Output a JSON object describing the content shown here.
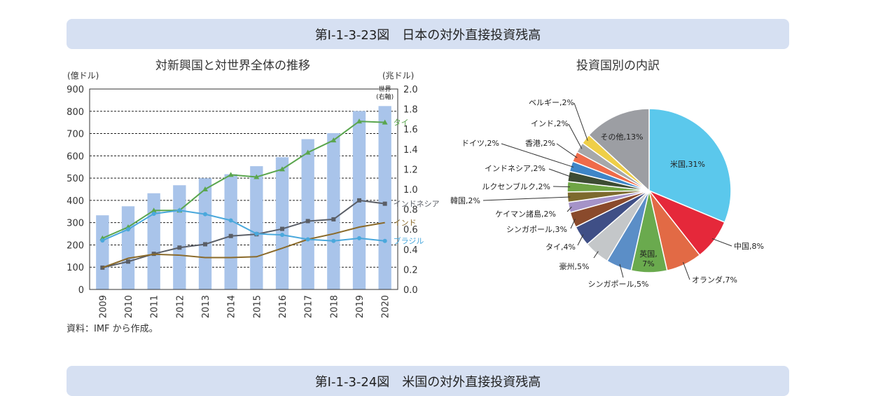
{
  "figure_title": "第Ⅰ-1-3-23図　日本の対外直接投資残高",
  "next_figure_title": "第Ⅰ-1-3-24図　米国の対外直接投資残高",
  "source_note": "資料：IMF から作成。",
  "colors": {
    "bar": "#a9c4ea",
    "thailand": "#5aa64e",
    "indonesia": "#5a5e66",
    "india": "#8a6a2a",
    "brazil": "#4aa8dc",
    "banner": "#d6e0f2"
  },
  "chart_data": [
    {
      "type": "bar+line",
      "title": "対新興国と対世界全体の推移",
      "left_axis_unit": "(億ドル)",
      "right_axis_unit": "(兆ドル)",
      "ylim_left": [
        0,
        900
      ],
      "ylim_right": [
        0,
        2.0
      ],
      "left_ticks": [
        "0",
        "100",
        "200",
        "300",
        "400",
        "500",
        "600",
        "700",
        "800",
        "900"
      ],
      "right_ticks": [
        "0.0",
        "0.2",
        "0.4",
        "0.6",
        "0.8",
        "1.0",
        "1.2",
        "1.4",
        "1.6",
        "1.8",
        "2.0"
      ],
      "categories": [
        "2009",
        "2010",
        "2011",
        "2012",
        "2013",
        "2014",
        "2015",
        "2016",
        "2017",
        "2018",
        "2019",
        "2020"
      ],
      "grid": "dashed-horizontal",
      "bar_series": {
        "name": "世界\n(右軸)",
        "label_lines": [
          "世界",
          "(右軸)"
        ],
        "axis": "right",
        "values": [
          0.74,
          0.83,
          0.96,
          1.04,
          1.11,
          1.15,
          1.23,
          1.32,
          1.5,
          1.56,
          1.78,
          1.83
        ]
      },
      "line_series": [
        {
          "name": "タイ",
          "key": "thailand",
          "marker": "triangle",
          "values": [
            230,
            280,
            355,
            355,
            450,
            515,
            505,
            540,
            615,
            670,
            755,
            750
          ]
        },
        {
          "name": "インドネシア",
          "key": "indonesia",
          "marker": "square",
          "values": [
            98,
            125,
            160,
            188,
            203,
            240,
            248,
            272,
            307,
            315,
            400,
            385
          ]
        },
        {
          "name": "インド",
          "key": "india",
          "marker": "none",
          "values": [
            98,
            140,
            158,
            154,
            143,
            143,
            147,
            185,
            225,
            250,
            280,
            300
          ]
        },
        {
          "name": "ブラジル",
          "key": "brazil",
          "marker": "circle",
          "values": [
            220,
            270,
            340,
            355,
            338,
            310,
            250,
            245,
            225,
            218,
            230,
            218
          ]
        }
      ]
    },
    {
      "type": "pie",
      "title": "投資国別の内訳",
      "slices": [
        {
          "label": "米国,31%",
          "value": 31,
          "color": "#5bc8ec"
        },
        {
          "label": "中国,8%",
          "value": 8,
          "color": "#e5283a"
        },
        {
          "label": "オランダ,7%",
          "value": 7,
          "color": "#e26a45"
        },
        {
          "label": "英国,\n7%",
          "value": 7,
          "color": "#6aaa4e"
        },
        {
          "label": "シンガポール,5%",
          "value": 5,
          "color": "#5b8ec7"
        },
        {
          "label": "豪州,5%",
          "value": 5,
          "color": "#c4c7c9"
        },
        {
          "label": "タイ,4%",
          "value": 4,
          "color": "#3f4f86"
        },
        {
          "label": "シンガポール,3%",
          "value": 3,
          "color": "#8a4a2c"
        },
        {
          "label": "ケイマン諸島,2%",
          "value": 2,
          "color": "#a593c8"
        },
        {
          "label": "韓国,2%",
          "value": 2,
          "color": "#7d6a2e"
        },
        {
          "label": "ルクセンブルク,2%",
          "value": 2,
          "color": "#6fa545"
        },
        {
          "label": "インドネシア,2%",
          "value": 2,
          "color": "#3d4c33"
        },
        {
          "label": "ドイツ,2%",
          "value": 2,
          "color": "#3e86c8"
        },
        {
          "label": "香港,2%",
          "value": 2,
          "color": "#ef6b4a"
        },
        {
          "label": "インド,2%",
          "value": 2,
          "color": "#a6a8aa"
        },
        {
          "label": "ベルギー,2%",
          "value": 2,
          "color": "#efcf48"
        },
        {
          "label": "その他,13%",
          "value": 13,
          "color": "#9c9ea3"
        }
      ]
    }
  ]
}
